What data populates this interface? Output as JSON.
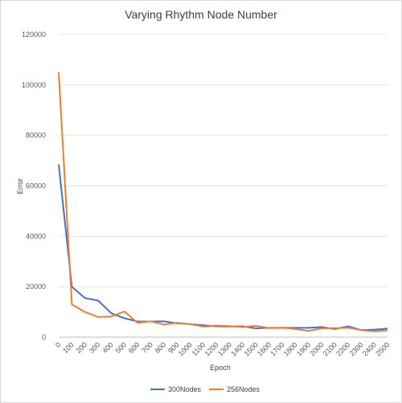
{
  "chart_data": {
    "type": "line",
    "title": "Varying Rhythm Node Number",
    "xlabel": "Epoch",
    "ylabel": "Error",
    "x": [
      0,
      100,
      200,
      300,
      400,
      500,
      600,
      700,
      800,
      900,
      1000,
      1100,
      1200,
      1300,
      1400,
      1500,
      1600,
      1700,
      1800,
      1900,
      2000,
      2100,
      2200,
      2300,
      2400,
      2500
    ],
    "ylim": [
      0,
      120000
    ],
    "yticks": [
      0,
      20000,
      40000,
      60000,
      80000,
      100000,
      120000
    ],
    "grid": true,
    "legend_position": "bottom",
    "series": [
      {
        "name": "300Nodes",
        "color": "#4472C4",
        "values": [
          68500,
          20000,
          15500,
          14500,
          9500,
          7500,
          6200,
          6200,
          6300,
          5500,
          5200,
          4700,
          4300,
          4200,
          4300,
          3500,
          3700,
          3700,
          3700,
          3700,
          4000,
          3200,
          4300,
          2800,
          3000,
          3400
        ]
      },
      {
        "name": "256Nodes",
        "color": "#ED7D31",
        "values": [
          105000,
          13000,
          10000,
          8000,
          8200,
          10200,
          5700,
          6300,
          5000,
          5700,
          5200,
          4200,
          4600,
          4400,
          4000,
          4500,
          3600,
          3800,
          3200,
          2500,
          3500,
          3600,
          3800,
          2800,
          2300,
          2700
        ]
      }
    ]
  }
}
